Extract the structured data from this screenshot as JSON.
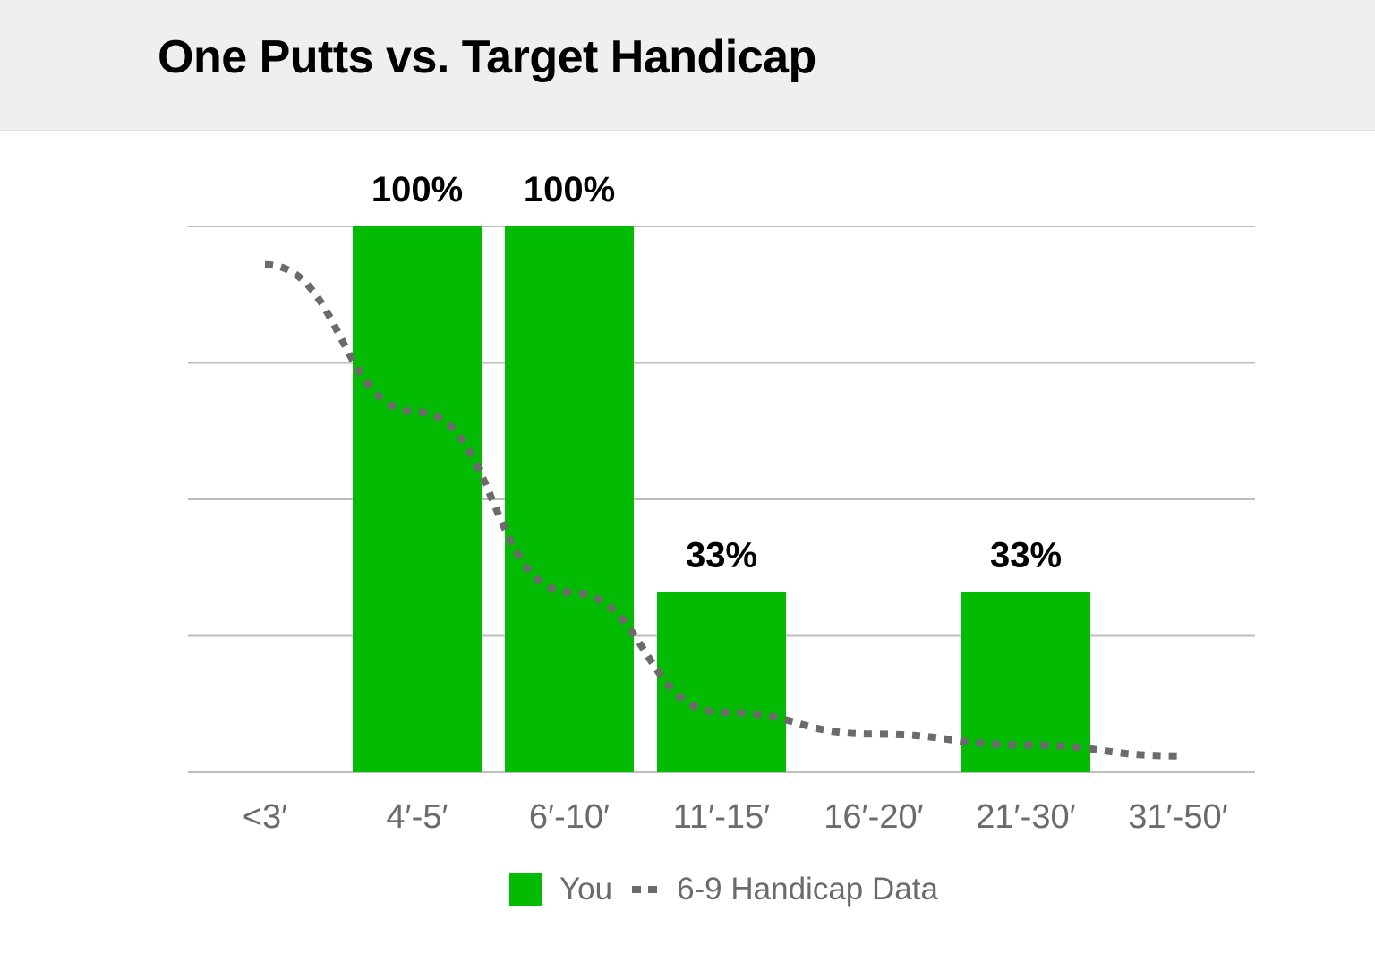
{
  "header": {
    "title": "One Putts vs. Target Handicap"
  },
  "colors": {
    "bar": "#03bb03",
    "line": "#6b6b6b",
    "grid": "#bdbdbd",
    "header_bg": "#efeff2"
  },
  "legend": {
    "bar_label": "You",
    "line_label": "6-9 Handicap Data"
  },
  "chart_data": {
    "type": "bar",
    "title": "One Putts vs. Target Handicap",
    "xlabel": "",
    "ylabel": "",
    "ylim": [
      0,
      100
    ],
    "grid": true,
    "gridlines": [
      0,
      25,
      50,
      75,
      100
    ],
    "legend_position": "bottom",
    "categories": [
      "<3′",
      "4′-5′",
      "6′-10′",
      "11′-15′",
      "16′-20′",
      "21′-30′",
      "31′-50′"
    ],
    "series": [
      {
        "name": "You",
        "type": "bar",
        "values": [
          0,
          100,
          100,
          33,
          0,
          33,
          0
        ],
        "labels": [
          "",
          "100%",
          "100%",
          "33%",
          "",
          "33%",
          ""
        ]
      },
      {
        "name": "6-9 Handicap Data",
        "type": "line",
        "style": "dashed",
        "values": [
          93,
          66,
          33,
          11,
          7,
          5,
          3
        ]
      }
    ]
  }
}
